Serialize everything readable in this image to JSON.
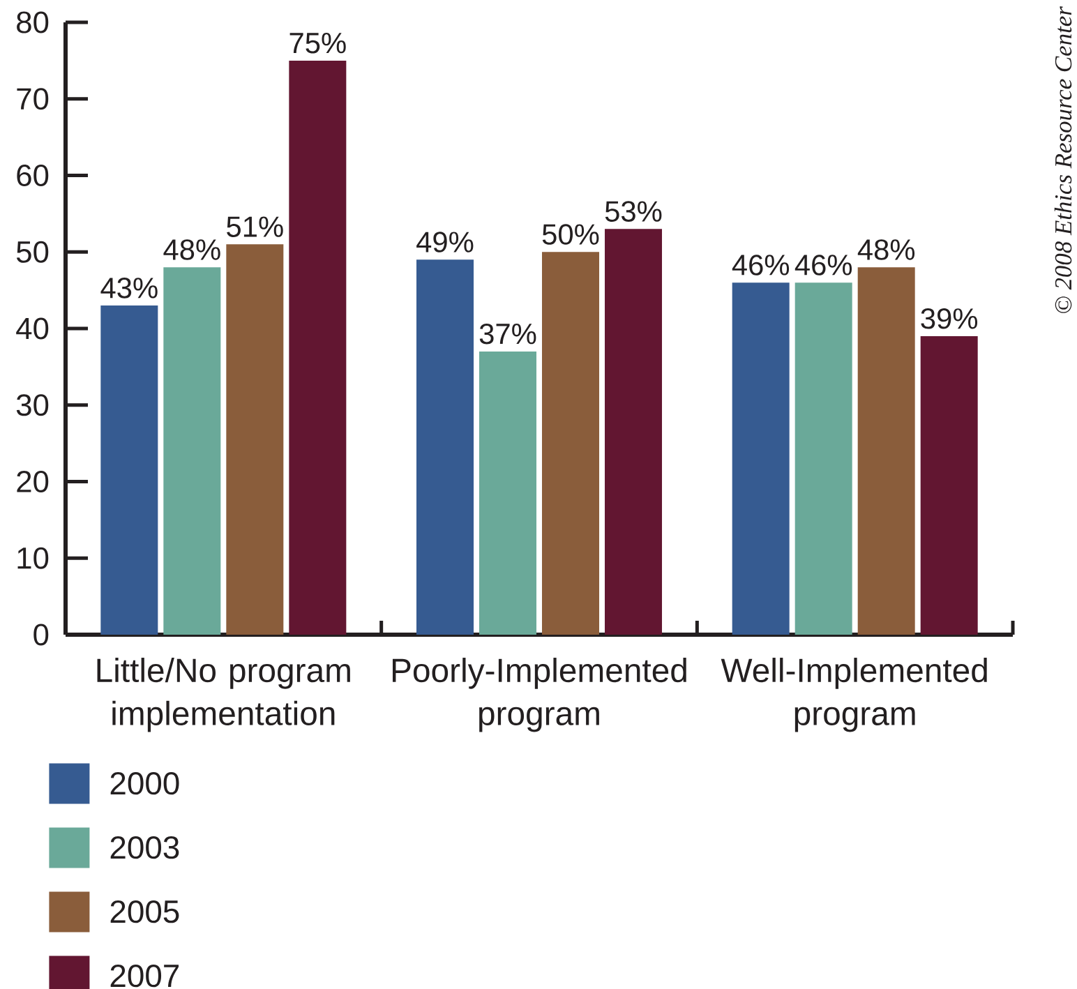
{
  "chart_data": {
    "type": "bar",
    "categories": [
      "Little/No program implementation",
      "Poorly-Implemented program",
      "Well-Implemented program"
    ],
    "series": [
      {
        "name": "2000",
        "color": "#365b91",
        "values": [
          43,
          49,
          46
        ],
        "value_labels": [
          "43%",
          "49%",
          "46%"
        ]
      },
      {
        "name": "2003",
        "color": "#6aa999",
        "values": [
          48,
          37,
          46
        ],
        "value_labels": [
          "48%",
          "37%",
          "46%"
        ]
      },
      {
        "name": "2005",
        "color": "#8a5d3b",
        "values": [
          51,
          50,
          48
        ],
        "value_labels": [
          "51%",
          "50%",
          "48%"
        ]
      },
      {
        "name": "2007",
        "color": "#621631",
        "values": [
          75,
          53,
          39
        ],
        "value_labels": [
          "75%",
          "53%",
          "39%"
        ]
      }
    ],
    "ylim": [
      0,
      80
    ],
    "yticks": [
      0,
      10,
      20,
      30,
      40,
      50,
      60,
      70,
      80
    ],
    "legend": "bottom",
    "annotations": [
      "© 2008 Ethics Resource Center"
    ]
  }
}
